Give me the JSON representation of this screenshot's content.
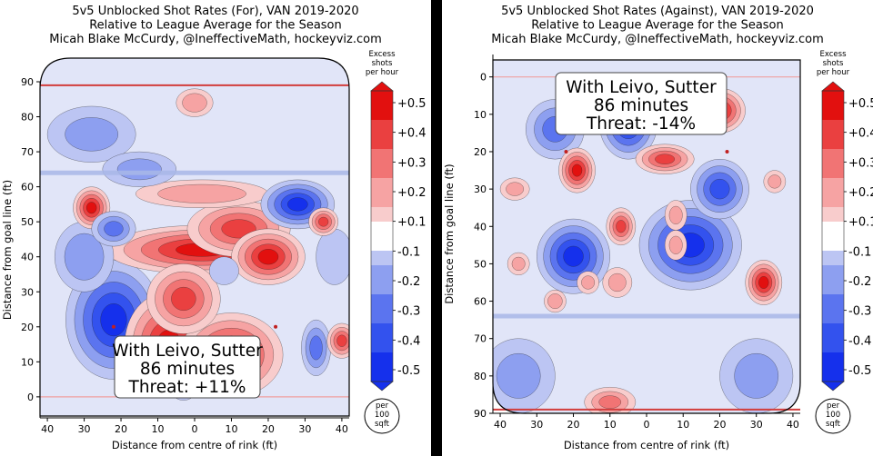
{
  "chart_data": [
    {
      "type": "heatmap",
      "title": [
        "5v5 Unblocked Shot Rates (For), VAN 2019-2020",
        "Relative to League Average for the Season",
        "Micah Blake McCurdy, @IneffectiveMath, hockeyviz.com"
      ],
      "xlabel": "Distance from centre of rink (ft)",
      "ylabel": "Distance from goal line (ft)",
      "xlim": [
        42,
        -42
      ],
      "ylim": [
        90,
        -6
      ],
      "x_ticks": [
        "40",
        "30",
        "20",
        "10",
        "0",
        "10",
        "20",
        "30",
        "40"
      ],
      "y_ticks": [
        "0",
        "10",
        "20",
        "30",
        "40",
        "50",
        "60",
        "70",
        "80",
        "90"
      ],
      "annotation": [
        "With Leivo, Sutter",
        "86 minutes",
        "Threat: +11%"
      ],
      "colorbar": {
        "title": [
          "Excess",
          "shots",
          "per hour"
        ],
        "ticks": [
          "+0.5",
          "+0.4",
          "+0.3",
          "+0.2",
          "+0.1",
          "-0.1",
          "-0.2",
          "-0.3",
          "-0.4",
          "-0.5"
        ],
        "unit": [
          "per",
          "100",
          "sqft"
        ],
        "range": [
          -0.5,
          0.5
        ]
      },
      "blobs": [
        {
          "x": 22,
          "y": 22,
          "rx": 13,
          "ry": 17,
          "v": -0.5
        },
        {
          "x": 3,
          "y": 6,
          "rx": 5,
          "ry": 7,
          "v": -0.5
        },
        {
          "x": 7,
          "y": 15,
          "rx": 12,
          "ry": 15,
          "v": 0.5
        },
        {
          "x": -10,
          "y": 12,
          "rx": 14,
          "ry": 12,
          "v": 0.5
        },
        {
          "x": 3,
          "y": 28,
          "rx": 10,
          "ry": 10,
          "v": 0.4
        },
        {
          "x": -2,
          "y": 42,
          "rx": 26,
          "ry": 7,
          "v": 0.5
        },
        {
          "x": -20,
          "y": 40,
          "rx": 10,
          "ry": 8,
          "v": 0.5
        },
        {
          "x": 28,
          "y": 54,
          "rx": 5,
          "ry": 6,
          "v": 0.5
        },
        {
          "x": -12,
          "y": 48,
          "rx": 14,
          "ry": 8,
          "v": 0.4
        },
        {
          "x": -28,
          "y": 55,
          "rx": 10,
          "ry": 7,
          "v": -0.5
        },
        {
          "x": -40,
          "y": 16,
          "rx": 4,
          "ry": 5,
          "v": 0.4
        },
        {
          "x": -33,
          "y": 14,
          "rx": 4,
          "ry": 8,
          "v": -0.3
        },
        {
          "x": 6,
          "y": 4,
          "rx": 3,
          "ry": 4,
          "v": 0.35
        },
        {
          "x": -2,
          "y": 58,
          "rx": 18,
          "ry": 4,
          "v": 0.25
        },
        {
          "x": -35,
          "y": 50,
          "rx": 4,
          "ry": 4,
          "v": 0.4
        },
        {
          "x": 30,
          "y": 40,
          "rx": 8,
          "ry": 10,
          "v": -0.25
        },
        {
          "x": 28,
          "y": 75,
          "rx": 12,
          "ry": 8,
          "v": -0.2
        },
        {
          "x": 15,
          "y": 65,
          "rx": 10,
          "ry": 5,
          "v": -0.2
        },
        {
          "x": -38,
          "y": 40,
          "rx": 5,
          "ry": 8,
          "v": -0.15
        },
        {
          "x": 0,
          "y": 84,
          "rx": 5,
          "ry": 4,
          "v": 0.25
        },
        {
          "x": 22,
          "y": 48,
          "rx": 6,
          "ry": 5,
          "v": -0.3
        },
        {
          "x": -8,
          "y": 36,
          "rx": 4,
          "ry": 4,
          "v": -0.1
        }
      ]
    },
    {
      "type": "heatmap",
      "title": [
        "5v5 Unblocked Shot Rates (Against), VAN 2019-2020",
        "Relative to League Average for the Season",
        "Micah Blake McCurdy, @IneffectiveMath, hockeyviz.com"
      ],
      "xlabel": "Distance from centre of rink (ft)",
      "ylabel": "Distance from goal line (ft)",
      "xlim": [
        42,
        -42
      ],
      "ylim": [
        -6,
        90
      ],
      "x_ticks": [
        "40",
        "30",
        "20",
        "10",
        "0",
        "10",
        "20",
        "30",
        "40"
      ],
      "y_ticks": [
        "0",
        "10",
        "20",
        "30",
        "40",
        "50",
        "60",
        "70",
        "80",
        "90"
      ],
      "annotation": [
        "With Leivo, Sutter",
        "86 minutes",
        "Threat: -14%"
      ],
      "colorbar": {
        "title": [
          "Excess",
          "shots",
          "per hour"
        ],
        "ticks": [
          "+0.5",
          "+0.4",
          "+0.3",
          "+0.2",
          "+0.1",
          "-0.1",
          "-0.2",
          "-0.3",
          "-0.4",
          "-0.5"
        ],
        "unit": [
          "per",
          "100",
          "sqft"
        ],
        "range": [
          -0.5,
          0.5
        ]
      },
      "blobs": [
        {
          "x": 20,
          "y": 48,
          "rx": 10,
          "ry": 10,
          "v": -0.5
        },
        {
          "x": -12,
          "y": 45,
          "rx": 14,
          "ry": 12,
          "v": -0.5
        },
        {
          "x": -20,
          "y": 30,
          "rx": 8,
          "ry": 8,
          "v": -0.4
        },
        {
          "x": 5,
          "y": 12,
          "rx": 8,
          "ry": 10,
          "v": -0.5
        },
        {
          "x": 25,
          "y": 14,
          "rx": 8,
          "ry": 8,
          "v": -0.3
        },
        {
          "x": -32,
          "y": 55,
          "rx": 5,
          "ry": 6,
          "v": 0.5
        },
        {
          "x": 19,
          "y": 25,
          "rx": 5,
          "ry": 6,
          "v": 0.5
        },
        {
          "x": 7,
          "y": 40,
          "rx": 4,
          "ry": 5,
          "v": 0.4
        },
        {
          "x": -20,
          "y": 9,
          "rx": 7,
          "ry": 6,
          "v": 0.5
        },
        {
          "x": -5,
          "y": 22,
          "rx": 8,
          "ry": 4,
          "v": 0.4
        },
        {
          "x": -35,
          "y": 28,
          "rx": 3,
          "ry": 3,
          "v": 0.2
        },
        {
          "x": 10,
          "y": 87,
          "rx": 7,
          "ry": 4,
          "v": 0.3
        },
        {
          "x": -8,
          "y": 45,
          "rx": 3,
          "ry": 4,
          "v": 0.2
        },
        {
          "x": 16,
          "y": 55,
          "rx": 3,
          "ry": 3,
          "v": 0.2
        },
        {
          "x": 25,
          "y": 60,
          "rx": 3,
          "ry": 3,
          "v": 0.25
        },
        {
          "x": 8,
          "y": 55,
          "rx": 4,
          "ry": 4,
          "v": 0.2
        },
        {
          "x": 36,
          "y": 30,
          "rx": 4,
          "ry": 3,
          "v": 0.2
        },
        {
          "x": -8,
          "y": 37,
          "rx": 3,
          "ry": 4,
          "v": 0.2
        },
        {
          "x": 35,
          "y": 50,
          "rx": 3,
          "ry": 3,
          "v": 0.2
        },
        {
          "x": 35,
          "y": 80,
          "rx": 10,
          "ry": 10,
          "v": -0.2
        },
        {
          "x": -30,
          "y": 80,
          "rx": 10,
          "ry": 10,
          "v": -0.2
        },
        {
          "x": 0,
          "y": 2,
          "rx": 8,
          "ry": 3,
          "v": -0.4
        }
      ]
    }
  ]
}
